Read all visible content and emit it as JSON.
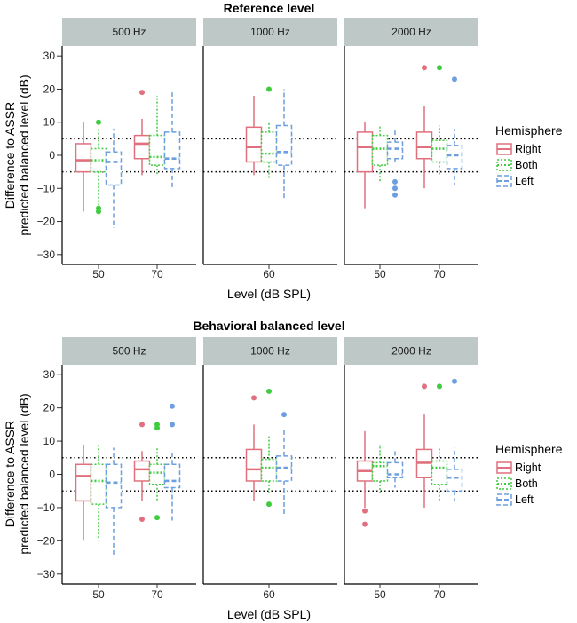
{
  "chart_data": {
    "type": "boxplot",
    "colors": {
      "Right": "#e0707e",
      "Both": "#3fcc3f",
      "Left": "#6d9fde",
      "strip_bg": "#bdc8c7"
    },
    "legend": {
      "title": "Hemisphere",
      "position": "right",
      "entries": [
        "Right",
        "Both",
        "Left"
      ]
    },
    "xlabel": "Level (dB SPL)",
    "ylabel_line1": "Difference to ASSR",
    "ylabel_line2": "predicted balanced level (dB)",
    "ylim": [
      -33,
      33
    ],
    "yticks": [
      -30,
      -20,
      -10,
      0,
      10,
      20,
      30
    ],
    "ytick_labels": [
      "−30",
      "−20",
      "−10",
      "0",
      "10",
      "20",
      "30"
    ],
    "reference_lines": [
      -5,
      5
    ],
    "panels": [
      {
        "title": "Reference level",
        "facets": [
          {
            "strip": "500 Hz",
            "groups": [
              {
                "level": "50",
                "boxes": [
                  {
                    "hemi": "Right",
                    "min": -17,
                    "q1": -5,
                    "median": -1.5,
                    "q3": 3.5,
                    "max": 10,
                    "outliers": []
                  },
                  {
                    "hemi": "Both",
                    "min": -15,
                    "q1": -5,
                    "median": -1.5,
                    "q3": 2,
                    "max": 8,
                    "outliers": [
                      10,
                      -16,
                      -17
                    ]
                  },
                  {
                    "hemi": "Left",
                    "min": -22,
                    "q1": -9,
                    "median": -2,
                    "q3": 1,
                    "max": 8,
                    "outliers": []
                  }
                ]
              },
              {
                "level": "70",
                "boxes": [
                  {
                    "hemi": "Right",
                    "min": -6,
                    "q1": -1,
                    "median": 3.5,
                    "q3": 6,
                    "max": 11,
                    "outliers": [
                      19
                    ]
                  },
                  {
                    "hemi": "Both",
                    "min": -6,
                    "q1": -3,
                    "median": -0.5,
                    "q3": 6,
                    "max": 18,
                    "outliers": []
                  },
                  {
                    "hemi": "Left",
                    "min": -10,
                    "q1": -4,
                    "median": -1,
                    "q3": 7,
                    "max": 19,
                    "outliers": []
                  }
                ]
              }
            ]
          },
          {
            "strip": "1000 Hz",
            "groups": [
              {
                "level": "60",
                "boxes": [
                  {
                    "hemi": "Right",
                    "min": -6,
                    "q1": -2,
                    "median": 2.5,
                    "q3": 8.5,
                    "max": 18,
                    "outliers": []
                  },
                  {
                    "hemi": "Both",
                    "min": -7,
                    "q1": -2,
                    "median": 0.5,
                    "q3": 7,
                    "max": 10,
                    "outliers": [
                      20
                    ]
                  },
                  {
                    "hemi": "Left",
                    "min": -13,
                    "q1": -3,
                    "median": 1,
                    "q3": 9,
                    "max": 20,
                    "outliers": []
                  }
                ]
              }
            ]
          },
          {
            "strip": "2000 Hz",
            "groups": [
              {
                "level": "50",
                "boxes": [
                  {
                    "hemi": "Right",
                    "min": -16,
                    "q1": -5,
                    "median": 2.5,
                    "q3": 7,
                    "max": 10,
                    "outliers": []
                  },
                  {
                    "hemi": "Both",
                    "min": -8,
                    "q1": -3,
                    "median": 2,
                    "q3": 6,
                    "max": 9,
                    "outliers": []
                  },
                  {
                    "hemi": "Left",
                    "min": -2,
                    "q1": -1,
                    "median": 2,
                    "q3": 4,
                    "max": 8,
                    "outliers": [
                      -8,
                      -10,
                      -12
                    ]
                  }
                ]
              },
              {
                "level": "70",
                "boxes": [
                  {
                    "hemi": "Right",
                    "min": -10,
                    "q1": -1,
                    "median": 2.5,
                    "q3": 7,
                    "max": 15,
                    "outliers": [
                      26.5
                    ]
                  },
                  {
                    "hemi": "Both",
                    "min": -6,
                    "q1": -2,
                    "median": 2,
                    "q3": 4.5,
                    "max": 9,
                    "outliers": [
                      26.5
                    ]
                  },
                  {
                    "hemi": "Left",
                    "min": -9,
                    "q1": -4,
                    "median": 0,
                    "q3": 3,
                    "max": 8,
                    "outliers": [
                      23
                    ]
                  }
                ]
              }
            ]
          }
        ]
      },
      {
        "title": "Behavioral balanced level",
        "facets": [
          {
            "strip": "500 Hz",
            "groups": [
              {
                "level": "50",
                "boxes": [
                  {
                    "hemi": "Right",
                    "min": -20,
                    "q1": -8,
                    "median": -0.5,
                    "q3": 3,
                    "max": 9,
                    "outliers": []
                  },
                  {
                    "hemi": "Both",
                    "min": -20,
                    "q1": -9,
                    "median": -2,
                    "q3": 3,
                    "max": 9,
                    "outliers": []
                  },
                  {
                    "hemi": "Left",
                    "min": -25,
                    "q1": -10,
                    "median": -2.5,
                    "q3": 3,
                    "max": 8,
                    "outliers": []
                  }
                ]
              },
              {
                "level": "70",
                "boxes": [
                  {
                    "hemi": "Right",
                    "min": -8,
                    "q1": -2,
                    "median": 1.5,
                    "q3": 4,
                    "max": 7,
                    "outliers": [
                      15,
                      -13.5
                    ]
                  },
                  {
                    "hemi": "Both",
                    "min": -8,
                    "q1": -3,
                    "median": 0.5,
                    "q3": 3,
                    "max": 8,
                    "outliers": [
                      15,
                      14,
                      -13
                    ]
                  },
                  {
                    "hemi": "Left",
                    "min": -14,
                    "q1": -4,
                    "median": -2,
                    "q3": 3,
                    "max": 7,
                    "outliers": [
                      20.5,
                      15
                    ]
                  }
                ]
              }
            ]
          },
          {
            "strip": "1000 Hz",
            "groups": [
              {
                "level": "60",
                "boxes": [
                  {
                    "hemi": "Right",
                    "min": -8,
                    "q1": -2,
                    "median": 1.5,
                    "q3": 7.5,
                    "max": 15,
                    "outliers": [
                      23
                    ]
                  },
                  {
                    "hemi": "Both",
                    "min": -6,
                    "q1": -2,
                    "median": 2,
                    "q3": 4.5,
                    "max": 12,
                    "outliers": [
                      25,
                      -9
                    ]
                  },
                  {
                    "hemi": "Left",
                    "min": -12,
                    "q1": -2,
                    "median": 2,
                    "q3": 5.5,
                    "max": 14,
                    "outliers": [
                      18
                    ]
                  }
                ]
              }
            ]
          },
          {
            "strip": "2000 Hz",
            "groups": [
              {
                "level": "50",
                "boxes": [
                  {
                    "hemi": "Right",
                    "min": -10,
                    "q1": -2,
                    "median": 1,
                    "q3": 4,
                    "max": 13,
                    "outliers": [
                      -11,
                      -15
                    ]
                  },
                  {
                    "hemi": "Both",
                    "min": -6,
                    "q1": -2,
                    "median": 2.5,
                    "q3": 3.5,
                    "max": 9,
                    "outliers": []
                  },
                  {
                    "hemi": "Left",
                    "min": -4,
                    "q1": -1,
                    "median": 0,
                    "q3": 3.5,
                    "max": 7,
                    "outliers": []
                  }
                ]
              },
              {
                "level": "70",
                "boxes": [
                  {
                    "hemi": "Right",
                    "min": -10,
                    "q1": -1,
                    "median": 3.5,
                    "q3": 7.5,
                    "max": 18,
                    "outliers": [
                      26.5
                    ]
                  },
                  {
                    "hemi": "Both",
                    "min": -8,
                    "q1": -3,
                    "median": 2,
                    "q3": 4,
                    "max": 8,
                    "outliers": [
                      26.5
                    ]
                  },
                  {
                    "hemi": "Left",
                    "min": -8,
                    "q1": -5,
                    "median": -1,
                    "q3": 1.5,
                    "max": 8,
                    "outliers": [
                      28
                    ]
                  }
                ]
              }
            ]
          }
        ]
      }
    ]
  }
}
